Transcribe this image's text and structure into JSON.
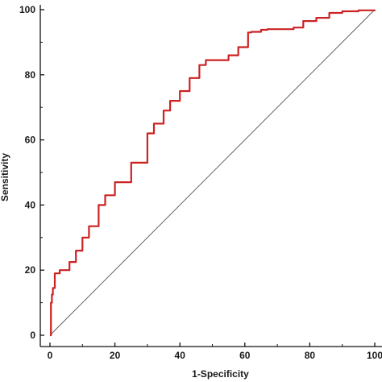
{
  "chart_data": {
    "type": "line",
    "title": "",
    "xlabel": "1-Specificity",
    "ylabel": "Sensitivity",
    "xlim": [
      0,
      100
    ],
    "ylim": [
      0,
      100
    ],
    "xticks": [
      0,
      20,
      40,
      60,
      80,
      100
    ],
    "yticks": [
      0,
      20,
      40,
      60,
      80,
      100
    ],
    "grid": false,
    "legend": "none",
    "series": [
      {
        "color": "#cc2222",
        "style": "step",
        "x": [
          0,
          0.3,
          0.6,
          0.9,
          1.5,
          3,
          6,
          8,
          10,
          12,
          15,
          15,
          17,
          20,
          25,
          30,
          30,
          32,
          35,
          37,
          40,
          43,
          46,
          46,
          48,
          50,
          52,
          55,
          55,
          58,
          61,
          62,
          65,
          67,
          70,
          75,
          78,
          78,
          80,
          82,
          86,
          90,
          95,
          100
        ],
        "y": [
          0,
          10,
          12.5,
          14.5,
          19,
          20,
          22.5,
          26,
          30,
          33.5,
          37.5,
          40,
          43,
          47,
          53,
          58,
          62,
          65,
          69,
          72,
          75,
          79,
          82,
          83,
          84.5,
          84.5,
          84.5,
          84.5,
          86,
          88.5,
          93,
          93.2,
          93.8,
          94,
          94,
          94.5,
          94.8,
          96.5,
          96.5,
          97.5,
          99,
          99.5,
          99.8,
          100
        ]
      },
      {
        "color": "#555555",
        "style": "reference",
        "x": [
          0,
          100
        ],
        "y": [
          0,
          100
        ]
      }
    ]
  }
}
